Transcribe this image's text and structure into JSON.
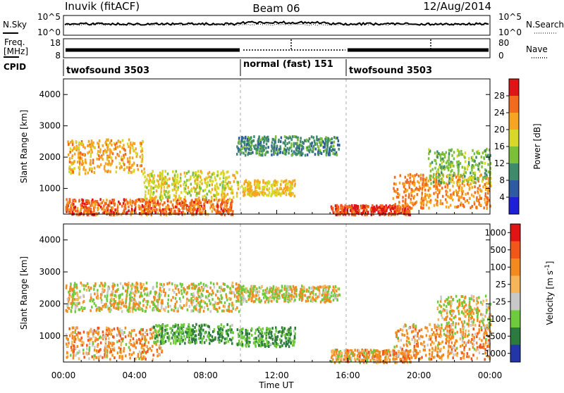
{
  "header": {
    "station": "Inuvik (fitACF)",
    "beam": "Beam 06",
    "date": "12/Aug/2014"
  },
  "noise_panel": {
    "left_label": "N.Sky",
    "left_ticks": [
      "10^5",
      "10^0"
    ],
    "right_label": "N.Search",
    "right_ticks": [
      "10^5",
      "10^0"
    ]
  },
  "freq_panel": {
    "left_label_1": "Freq.",
    "left_label_2": "[MHz]",
    "left_ticks": [
      "18",
      "8"
    ],
    "right_label": "Nave",
    "right_ticks": [
      "80",
      "0"
    ]
  },
  "cpid_panel": {
    "label": "CPID",
    "segments": [
      {
        "start_h": 0,
        "end_h": 10,
        "name": "twofsound 3503"
      },
      {
        "start_h": 10,
        "end_h": 16,
        "name": "normal (fast) 151"
      },
      {
        "start_h": 16,
        "end_h": 24,
        "name": "twofsound 3503"
      }
    ]
  },
  "chart_data": [
    {
      "type": "heatmap",
      "name": "Power",
      "ylabel": "Slant Range [km]",
      "ylim": [
        180,
        4500
      ],
      "xlim_hours": [
        0,
        24
      ],
      "yticks": [
        "1000",
        "2000",
        "3000",
        "4000"
      ],
      "colorbar": {
        "label": "Power [dB]",
        "ticks": [
          "4",
          "8",
          "12",
          "16",
          "20",
          "24",
          "28"
        ],
        "levels": [
          {
            "value": 2,
            "color": "#1f1fd9"
          },
          {
            "value": 6,
            "color": "#2e5aa0"
          },
          {
            "value": 10,
            "color": "#3e8a6a"
          },
          {
            "value": 14,
            "color": "#7cc03a"
          },
          {
            "value": 18,
            "color": "#d8d82a"
          },
          {
            "value": 22,
            "color": "#f5a521"
          },
          {
            "value": 26,
            "color": "#f26a1b"
          },
          {
            "value": 30,
            "color": "#e01414"
          }
        ]
      },
      "regions": [
        {
          "t0": 0.1,
          "t1": 9.5,
          "r0": 200,
          "r1": 700,
          "level": 26
        },
        {
          "t0": 0.2,
          "t1": 4.5,
          "r0": 1500,
          "r1": 2600,
          "level": 22
        },
        {
          "t0": 4.5,
          "t1": 9.8,
          "r0": 700,
          "r1": 1600,
          "level": 18
        },
        {
          "t0": 9.7,
          "t1": 15.5,
          "r0": 2100,
          "r1": 2700,
          "level": 10
        },
        {
          "t0": 10.0,
          "t1": 13.0,
          "r0": 800,
          "r1": 1300,
          "level": 20
        },
        {
          "t0": 15.0,
          "t1": 19.5,
          "r0": 200,
          "r1": 500,
          "level": 28
        },
        {
          "t0": 18.5,
          "t1": 24.0,
          "r0": 400,
          "r1": 1500,
          "level": 24
        },
        {
          "t0": 20.5,
          "t1": 24.0,
          "r0": 1200,
          "r1": 2300,
          "level": 14
        }
      ]
    },
    {
      "type": "heatmap",
      "name": "Velocity",
      "ylabel": "Slant Range [km]",
      "ylim": [
        180,
        4500
      ],
      "xlim_hours": [
        0,
        24
      ],
      "yticks": [
        "1000",
        "2000",
        "3000",
        "4000"
      ],
      "xlabel": "Time UT",
      "xticks": [
        "00:00",
        "04:00",
        "08:00",
        "12:00",
        "16:00",
        "20:00",
        "00:00"
      ],
      "colorbar": {
        "label": "Velocity [m s",
        "label_exponent": "-1",
        "label_tail": "]",
        "ticks": [
          "1000",
          "500",
          "100",
          "25",
          "-25",
          "-100",
          "-500",
          "-1000"
        ],
        "levels": [
          {
            "value": 1000,
            "color": "#2236a8"
          },
          {
            "value": 500,
            "color": "#2c7a3e"
          },
          {
            "value": 100,
            "color": "#6fca3d"
          },
          {
            "value": 25,
            "color": "#c8c8c8"
          },
          {
            "value": -25,
            "color": "#f6b45b"
          },
          {
            "value": -100,
            "color": "#f28a1e"
          },
          {
            "value": -500,
            "color": "#f2561a"
          },
          {
            "value": -1000,
            "color": "#e01414"
          }
        ]
      },
      "regions": [
        {
          "t0": 0.1,
          "t1": 10.0,
          "r0": 1800,
          "r1": 2700,
          "level": 0
        },
        {
          "t0": 0.1,
          "t1": 5.5,
          "r0": 300,
          "r1": 1300,
          "level": -150
        },
        {
          "t0": 5.0,
          "t1": 9.5,
          "r0": 800,
          "r1": 1400,
          "level": 300
        },
        {
          "t0": 9.7,
          "t1": 15.5,
          "r0": 2100,
          "r1": 2600,
          "level": 0
        },
        {
          "t0": 9.7,
          "t1": 13.0,
          "r0": 700,
          "r1": 1300,
          "level": 300
        },
        {
          "t0": 15.0,
          "t1": 19.5,
          "r0": 200,
          "r1": 600,
          "level": -100
        },
        {
          "t0": 18.5,
          "t1": 24.0,
          "r0": 300,
          "r1": 1400,
          "level": -150
        },
        {
          "t0": 21.0,
          "t1": 24.0,
          "r0": 1300,
          "r1": 2300,
          "level": 0
        }
      ]
    }
  ]
}
